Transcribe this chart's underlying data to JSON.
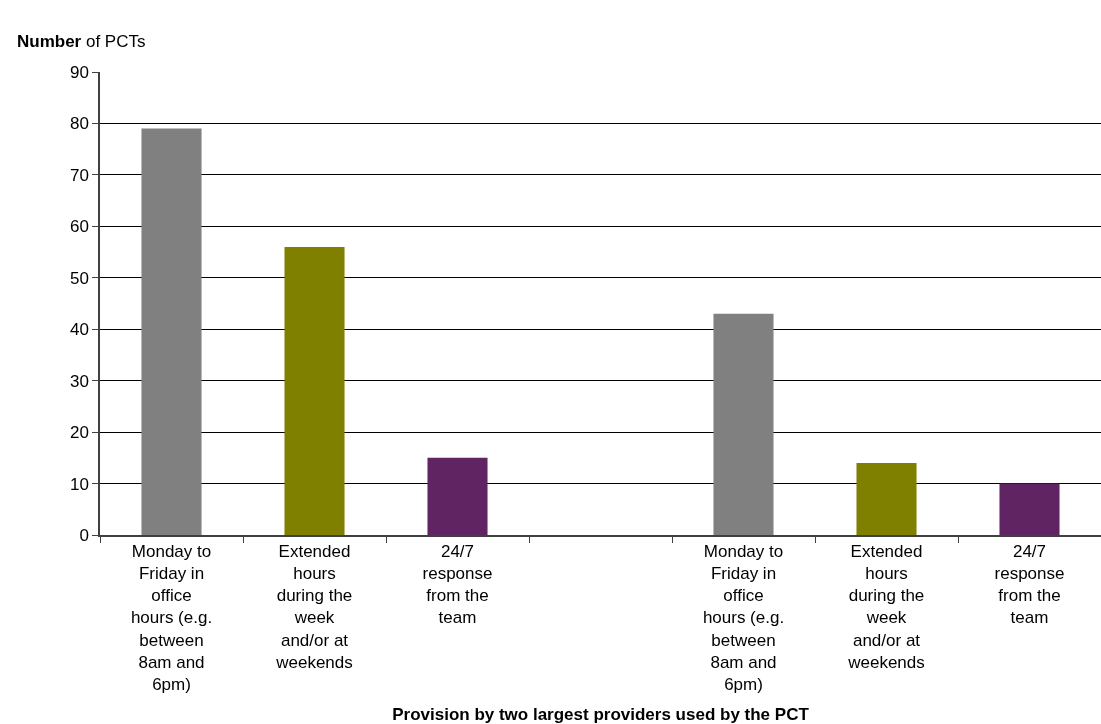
{
  "chart_data": {
    "type": "bar",
    "ylabel": "Number of PCTs",
    "xlabel": "Provision by two largest providers used by the PCT",
    "categories": [
      "Monday to\nFriday in\noffice\nhours (e.g.\nbetween\n8am and\n6pm)",
      "Extended\nhours\nduring the\nweek\nand/or at\nweekends",
      "24/7\nresponse\nfrom the\nteam",
      null,
      "Monday to\nFriday in\noffice\nhours (e.g.\nbetween\n8am and\n6pm)",
      "Extended\nhours\nduring the\nweek\nand/or at\nweekends",
      "24/7\nresponse\nfrom the\nteam"
    ],
    "values": [
      79,
      56,
      15,
      null,
      43,
      14,
      10
    ],
    "colors": [
      "#808080",
      "#808000",
      "#5f2461",
      null,
      "#808080",
      "#808000",
      "#5f2461"
    ],
    "ylim": [
      0,
      90
    ],
    "yticks": [
      0,
      10,
      20,
      30,
      40,
      50,
      60,
      70,
      80,
      90
    ],
    "grid": "y",
    "legend": false
  }
}
